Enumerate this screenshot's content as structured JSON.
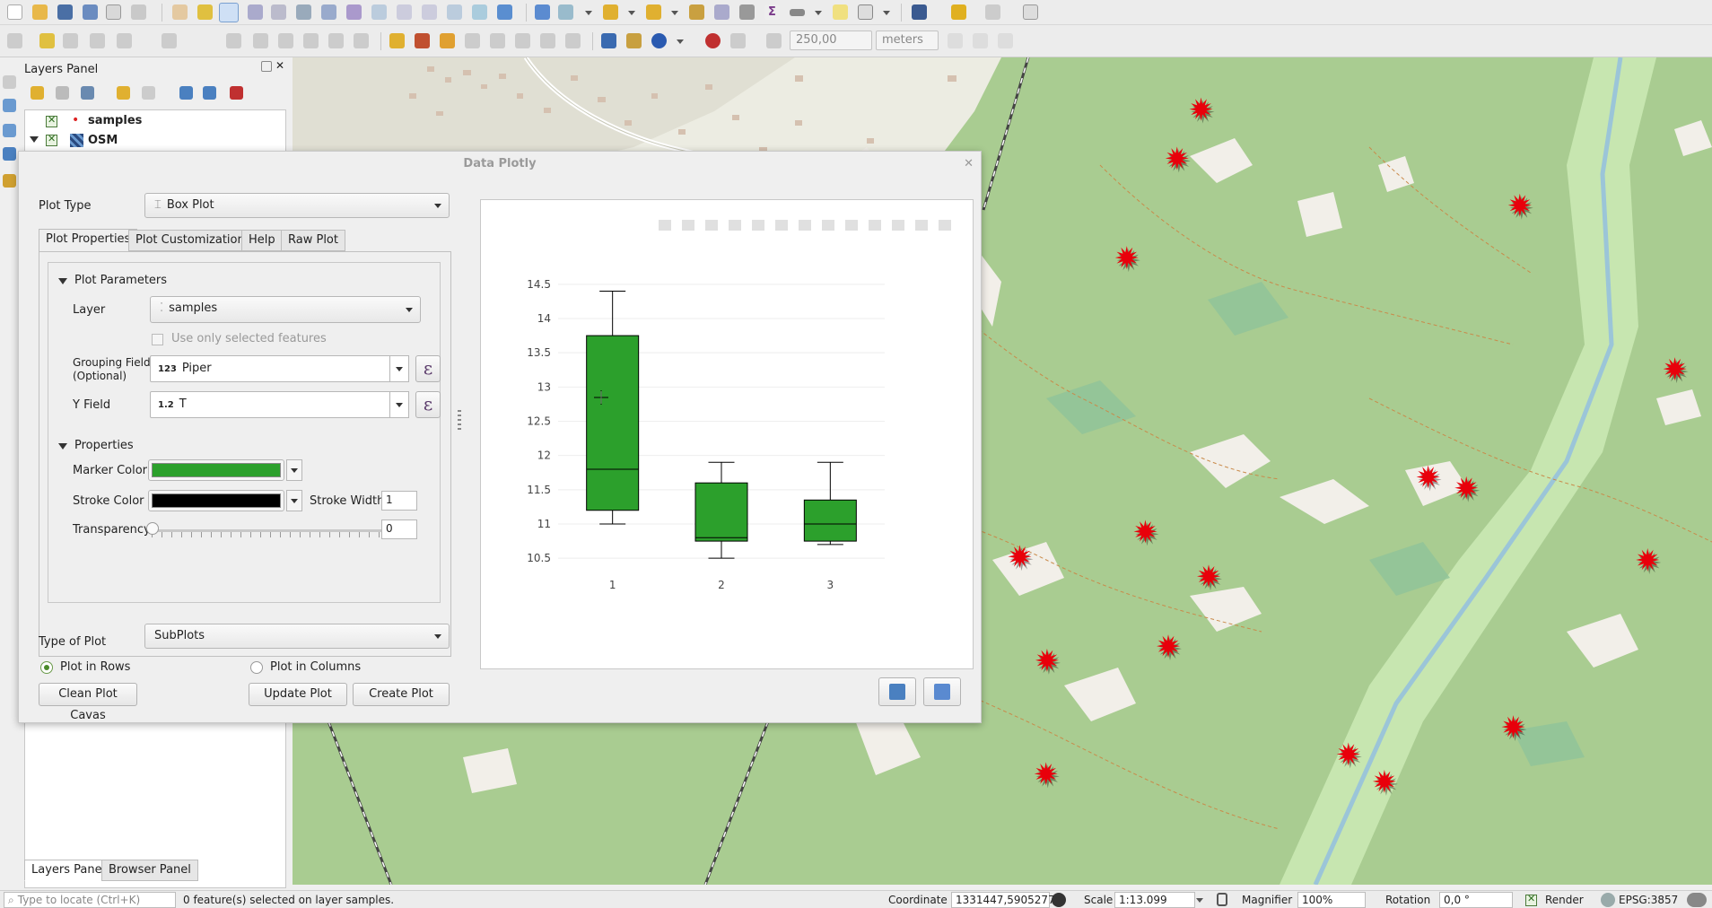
{
  "toolbar2": {
    "distance_value": "250,00",
    "units_value": "meters"
  },
  "layers_panel": {
    "title": "Layers Panel",
    "layers": [
      {
        "name": "samples"
      },
      {
        "name": "OSM"
      }
    ],
    "tabs": [
      "Layers Panel",
      "Browser Panel"
    ]
  },
  "dialog": {
    "title": "Data Plotly",
    "plot_type_label": "Plot Type",
    "plot_type_value": "Box Plot",
    "tabs": [
      "Plot Properties",
      "Plot Customizations",
      "Help",
      "Raw Plot"
    ],
    "plot_parameters_header": "Plot Parameters",
    "layer_label": "Layer",
    "layer_value": "samples",
    "use_selected_label": "Use only selected features",
    "grouping_label_1": "Grouping Field",
    "grouping_label_2": "(Optional)",
    "grouping_type": "123",
    "grouping_value": "Piper",
    "yfield_label": "Y Field",
    "yfield_type": "1.2",
    "yfield_value": "T",
    "properties_header": "Properties",
    "marker_color_label": "Marker Color",
    "marker_color": "#2ca02c",
    "stroke_color_label": "Stroke Color",
    "stroke_color": "#000000",
    "stroke_width_label": "Stroke Width",
    "stroke_width_value": "1",
    "transparency_label": "Transparency",
    "transparency_value": "0",
    "type_of_plot_label": "Type of Plot",
    "type_of_plot_value": "SubPlots",
    "plot_in_rows_label": "Plot in Rows",
    "plot_in_columns_label": "Plot in Columns",
    "clean_button": "Clean Plot Cavas",
    "update_button": "Update Plot",
    "create_button": "Create Plot"
  },
  "chart_data": {
    "type": "box",
    "categories": [
      "1",
      "2",
      "3"
    ],
    "yticks": [
      "10.5",
      "11",
      "11.5",
      "12",
      "12.5",
      "13",
      "13.5",
      "14",
      "14.5"
    ],
    "ylim": [
      10.45,
      14.55
    ],
    "boxes": [
      {
        "category": "1",
        "min": 11.0,
        "q1": 11.2,
        "median": 11.8,
        "q3": 13.75,
        "max": 14.4
      },
      {
        "category": "2",
        "min": 10.5,
        "q1": 10.75,
        "median": 10.8,
        "q3": 11.6,
        "max": 11.9
      },
      {
        "category": "3",
        "min": 10.7,
        "q1": 10.75,
        "median": 11.0,
        "q3": 11.35,
        "max": 11.9
      }
    ],
    "fill_color": "#2ca02c",
    "stroke_color": "#000000",
    "grid": true
  },
  "map": {
    "sample_markers": [
      [
        1100,
        100
      ],
      [
        1078,
        145
      ],
      [
        1392,
        188
      ],
      [
        1032,
        236
      ],
      [
        1534,
        338
      ],
      [
        1308,
        437
      ],
      [
        1343,
        447
      ],
      [
        934,
        510
      ],
      [
        1049,
        487
      ],
      [
        1107,
        528
      ],
      [
        1509,
        513
      ],
      [
        959,
        605
      ],
      [
        1070,
        592
      ],
      [
        1386,
        666
      ],
      [
        1235,
        691
      ],
      [
        1268,
        716
      ],
      [
        958,
        709
      ]
    ]
  },
  "status": {
    "locate_placeholder": "Type to locate (Ctrl+K)",
    "selection_message": "0 feature(s) selected on layer samples.",
    "coordinate_label": "Coordinate",
    "coordinate_value": "1331447,5905277",
    "scale_label": "Scale",
    "scale_value": "1:13.099",
    "magnifier_label": "Magnifier",
    "magnifier_value": "100%",
    "rotation_label": "Rotation",
    "rotation_value": "0,0 °",
    "render_label": "Render",
    "crs": "EPSG:3857"
  }
}
